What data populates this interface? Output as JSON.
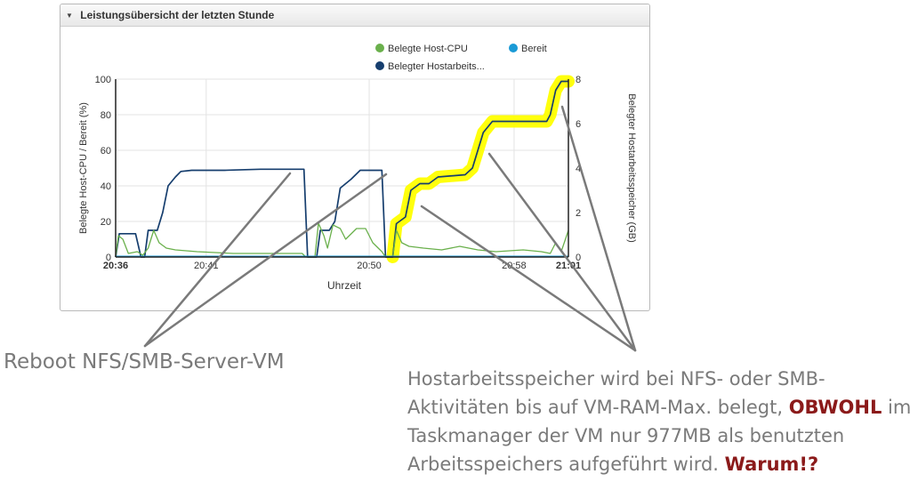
{
  "panel": {
    "toggle_icon": "triangle-down-icon",
    "title": "Leistungsübersicht der letzten Stunde"
  },
  "chart_data": {
    "type": "line",
    "title": "",
    "xlabel": "Uhrzeit",
    "ylabel_left": "Belegte Host-CPU / Bereit (%)",
    "ylabel_right": "Belegter Hostarbeitsspeicher (GB)",
    "ylim_left": [
      0,
      100
    ],
    "ylim_right": [
      0,
      8
    ],
    "yticks_left": [
      "0",
      "20",
      "40",
      "60",
      "80",
      "100"
    ],
    "yticks_right": [
      "0",
      "2",
      "4",
      "6",
      "8"
    ],
    "x_range_minutes": [
      0,
      25
    ],
    "xticks": [
      {
        "label": "20:36",
        "minute": 0,
        "bold": true
      },
      {
        "label": "20:41",
        "minute": 5,
        "bold": false
      },
      {
        "label": "20:50",
        "minute": 14,
        "bold": false
      },
      {
        "label": "20:58",
        "minute": 22,
        "bold": false
      },
      {
        "label": "21:01",
        "minute": 25,
        "bold": true
      }
    ],
    "grid": true,
    "legend_position": "top-right",
    "legend": [
      {
        "label": "Belegte Host-CPU",
        "color": "#6ab04c"
      },
      {
        "label": "Bereit",
        "color": "#1a9ad6"
      },
      {
        "label": "Belegter Hostarbeits...",
        "color": "#163e6e"
      }
    ],
    "series": [
      {
        "name": "Belegter Hostarbeitsspeicher",
        "axis": "right",
        "unit": "GB",
        "color": "#163e6e",
        "points": [
          [
            0.0,
            0.0
          ],
          [
            0.2,
            1.05
          ],
          [
            1.1,
            1.05
          ],
          [
            1.4,
            0.0
          ],
          [
            1.6,
            0.0
          ],
          [
            1.8,
            1.2
          ],
          [
            2.3,
            1.2
          ],
          [
            2.6,
            2.0
          ],
          [
            2.9,
            3.2
          ],
          [
            3.3,
            3.6
          ],
          [
            3.6,
            3.85
          ],
          [
            4.2,
            3.9
          ],
          [
            6.0,
            3.9
          ],
          [
            8.0,
            3.95
          ],
          [
            10.4,
            3.95
          ],
          [
            10.6,
            0.0
          ],
          [
            11.1,
            0.0
          ],
          [
            11.3,
            1.2
          ],
          [
            11.8,
            1.2
          ],
          [
            12.1,
            1.6
          ],
          [
            12.4,
            3.1
          ],
          [
            13.0,
            3.5
          ],
          [
            13.5,
            3.9
          ],
          [
            14.7,
            3.9
          ],
          [
            14.9,
            0.0
          ],
          [
            15.3,
            0.0
          ],
          [
            15.5,
            1.5
          ],
          [
            16.0,
            1.8
          ],
          [
            16.3,
            3.0
          ],
          [
            16.8,
            3.3
          ],
          [
            17.3,
            3.3
          ],
          [
            17.8,
            3.6
          ],
          [
            19.3,
            3.7
          ],
          [
            19.7,
            4.0
          ],
          [
            20.0,
            4.8
          ],
          [
            20.3,
            5.6
          ],
          [
            20.8,
            6.1
          ],
          [
            22.5,
            6.1
          ],
          [
            23.8,
            6.1
          ],
          [
            24.0,
            6.4
          ],
          [
            24.3,
            7.5
          ],
          [
            24.6,
            7.9
          ],
          [
            25.0,
            7.9
          ]
        ]
      },
      {
        "name": "Belegte Host-CPU",
        "axis": "left",
        "unit": "%",
        "color": "#6ab04c",
        "points": [
          [
            0.0,
            0.0
          ],
          [
            0.15,
            12
          ],
          [
            0.4,
            10
          ],
          [
            0.7,
            2
          ],
          [
            1.2,
            3
          ],
          [
            1.5,
            1
          ],
          [
            1.8,
            5
          ],
          [
            2.1,
            15
          ],
          [
            2.4,
            8
          ],
          [
            2.8,
            5
          ],
          [
            3.3,
            4
          ],
          [
            4.5,
            3
          ],
          [
            6.5,
            2
          ],
          [
            8.5,
            2
          ],
          [
            10.3,
            2
          ],
          [
            10.5,
            0
          ],
          [
            11.0,
            0
          ],
          [
            11.2,
            19
          ],
          [
            11.5,
            12
          ],
          [
            11.7,
            5
          ],
          [
            12.0,
            18
          ],
          [
            12.4,
            16
          ],
          [
            12.7,
            10
          ],
          [
            13.3,
            16
          ],
          [
            13.8,
            16
          ],
          [
            14.2,
            8
          ],
          [
            14.7,
            3
          ],
          [
            14.9,
            0
          ],
          [
            15.3,
            0
          ],
          [
            15.5,
            15
          ],
          [
            15.8,
            8
          ],
          [
            16.2,
            6
          ],
          [
            17.0,
            5
          ],
          [
            18.0,
            4
          ],
          [
            19.0,
            6
          ],
          [
            20.0,
            4
          ],
          [
            21.0,
            3
          ],
          [
            22.5,
            4
          ],
          [
            23.5,
            3
          ],
          [
            24.0,
            2
          ],
          [
            24.3,
            8
          ],
          [
            24.6,
            3
          ],
          [
            25.0,
            15
          ]
        ]
      },
      {
        "name": "Bereit",
        "axis": "left",
        "unit": "%",
        "color": "#1a9ad6",
        "points": [
          [
            0.0,
            0.4
          ],
          [
            25.0,
            0.4
          ]
        ]
      }
    ]
  },
  "annotations": {
    "reboot_label": "Reboot NFS/SMB-Server-VM",
    "memory_note": {
      "part1": "Hostarbeitsspeicher wird bei NFS- oder SMB-Aktivitäten bis auf VM-RAM-Max. belegt, ",
      "emphasis1": "OBWOHL",
      "part2": " im Taskmanager der VM nur 977MB als benutzten Arbeitsspeichers aufgeführt wird. ",
      "emphasis2": "Warum!?"
    },
    "highlight_color": "#ffff00",
    "arrow_color": "#7a7a7a"
  }
}
